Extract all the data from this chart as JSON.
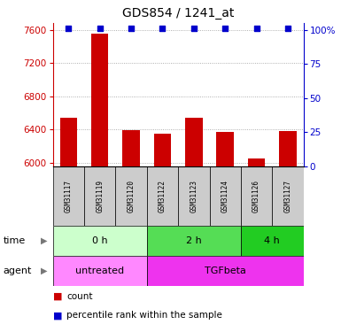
{
  "title": "GDS854 / 1241_at",
  "samples": [
    "GSM31117",
    "GSM31119",
    "GSM31120",
    "GSM31122",
    "GSM31123",
    "GSM31124",
    "GSM31126",
    "GSM31127"
  ],
  "counts": [
    6540,
    7560,
    6390,
    6350,
    6540,
    6375,
    6050,
    6385
  ],
  "ymin": 5960,
  "ymax": 7600,
  "yticks": [
    6000,
    6400,
    6800,
    7200,
    7600
  ],
  "right_ytick_labels": [
    "0",
    "25",
    "50",
    "75",
    "100%"
  ],
  "bar_color": "#cc0000",
  "dot_color": "#0000cc",
  "bar_width": 0.55,
  "left_axis_color": "#cc0000",
  "right_axis_color": "#0000cc",
  "grid_color": "#999999",
  "sample_bg_color": "#cccccc",
  "time_groups": [
    {
      "label": "0 h",
      "start": 0,
      "end": 3,
      "color": "#ccffcc"
    },
    {
      "label": "2 h",
      "start": 3,
      "end": 6,
      "color": "#55dd55"
    },
    {
      "label": "4 h",
      "start": 6,
      "end": 8,
      "color": "#22cc22"
    }
  ],
  "agent_groups": [
    {
      "label": "untreated",
      "start": 0,
      "end": 3,
      "color": "#ff88ff"
    },
    {
      "label": "TGFbeta",
      "start": 3,
      "end": 8,
      "color": "#ee33ee"
    }
  ]
}
